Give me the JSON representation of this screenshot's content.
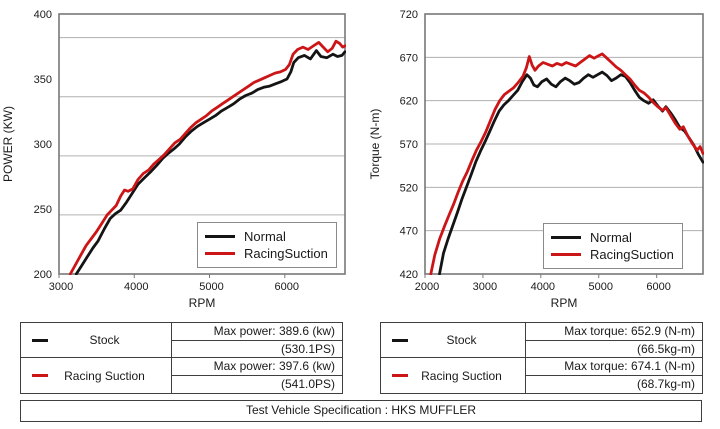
{
  "legend": {
    "items": [
      {
        "label": "Normal",
        "color": "#141414"
      },
      {
        "label": "RacingSuction",
        "color": "#cc1516"
      }
    ]
  },
  "chart_data": [
    {
      "type": "line",
      "title": "",
      "xlabel": "RPM",
      "ylabel": "POWER  (KW)",
      "xlim": [
        3000,
        6800
      ],
      "ylim": [
        200,
        420
      ],
      "x_ticks": [
        3000,
        4000,
        5000,
        6000
      ],
      "y_ticks": [
        400,
        350,
        300,
        250,
        200
      ],
      "y_label_span": [
        200,
        400
      ],
      "gridlines": [
        400,
        350,
        300,
        250
      ],
      "grid_on": true,
      "legend_position": "lower-right",
      "series": [
        {
          "name": "Normal",
          "color": "#141414",
          "points": [
            [
              3230,
              200
            ],
            [
              3300,
              207
            ],
            [
              3380,
              215
            ],
            [
              3450,
              222
            ],
            [
              3520,
              228
            ],
            [
              3600,
              238
            ],
            [
              3680,
              247
            ],
            [
              3750,
              251
            ],
            [
              3820,
              254
            ],
            [
              3900,
              261
            ],
            [
              3970,
              268
            ],
            [
              4050,
              276
            ],
            [
              4130,
              281
            ],
            [
              4210,
              286
            ],
            [
              4300,
              292
            ],
            [
              4380,
              298
            ],
            [
              4450,
              302
            ],
            [
              4530,
              306
            ],
            [
              4600,
              310
            ],
            [
              4680,
              316
            ],
            [
              4760,
              321
            ],
            [
              4840,
              325
            ],
            [
              4920,
              328
            ],
            [
              5000,
              331
            ],
            [
              5080,
              334
            ],
            [
              5160,
              338
            ],
            [
              5240,
              341
            ],
            [
              5320,
              344
            ],
            [
              5400,
              348
            ],
            [
              5480,
              351
            ],
            [
              5560,
              353
            ],
            [
              5640,
              356
            ],
            [
              5720,
              358
            ],
            [
              5800,
              359
            ],
            [
              5880,
              361
            ],
            [
              5960,
              363
            ],
            [
              6030,
              365
            ],
            [
              6080,
              371
            ],
            [
              6120,
              379
            ],
            [
              6180,
              383
            ],
            [
              6260,
              385
            ],
            [
              6340,
              382
            ],
            [
              6420,
              389
            ],
            [
              6480,
              384
            ],
            [
              6560,
              383
            ],
            [
              6640,
              386
            ],
            [
              6700,
              384
            ],
            [
              6760,
              385
            ],
            [
              6800,
              388
            ]
          ]
        },
        {
          "name": "RacingSuction",
          "color": "#cc1516",
          "points": [
            [
              3150,
              200
            ],
            [
              3220,
              208
            ],
            [
              3290,
              216
            ],
            [
              3360,
              224
            ],
            [
              3430,
              230
            ],
            [
              3500,
              236
            ],
            [
              3570,
              243
            ],
            [
              3640,
              250
            ],
            [
              3700,
              254
            ],
            [
              3760,
              258
            ],
            [
              3820,
              266
            ],
            [
              3870,
              271
            ],
            [
              3920,
              270
            ],
            [
              3980,
              272
            ],
            [
              4050,
              280
            ],
            [
              4120,
              285
            ],
            [
              4190,
              288
            ],
            [
              4260,
              293
            ],
            [
              4330,
              297
            ],
            [
              4400,
              301
            ],
            [
              4470,
              306
            ],
            [
              4540,
              311
            ],
            [
              4610,
              314
            ],
            [
              4680,
              319
            ],
            [
              4750,
              324
            ],
            [
              4820,
              328
            ],
            [
              4890,
              331
            ],
            [
              4960,
              334
            ],
            [
              5030,
              338
            ],
            [
              5100,
              341
            ],
            [
              5170,
              344
            ],
            [
              5240,
              347
            ],
            [
              5310,
              350
            ],
            [
              5380,
              353
            ],
            [
              5450,
              356
            ],
            [
              5520,
              359
            ],
            [
              5590,
              362
            ],
            [
              5660,
              364
            ],
            [
              5730,
              366
            ],
            [
              5800,
              368
            ],
            [
              5870,
              370
            ],
            [
              5940,
              371
            ],
            [
              6010,
              373
            ],
            [
              6060,
              377
            ],
            [
              6110,
              386
            ],
            [
              6170,
              390
            ],
            [
              6240,
              392
            ],
            [
              6310,
              390
            ],
            [
              6380,
              393
            ],
            [
              6450,
              396
            ],
            [
              6510,
              392
            ],
            [
              6570,
              388
            ],
            [
              6630,
              391
            ],
            [
              6680,
              397
            ],
            [
              6730,
              395
            ],
            [
              6770,
              392
            ],
            [
              6800,
              393
            ]
          ]
        }
      ]
    },
    {
      "type": "line",
      "title": "",
      "xlabel": "RPM",
      "ylabel": "Torque (N-m)",
      "xlim": [
        2000,
        6800
      ],
      "ylim": [
        420,
        720
      ],
      "x_ticks": [
        2000,
        3000,
        4000,
        5000,
        6000
      ],
      "y_ticks": [
        720,
        670,
        620,
        570,
        520,
        470,
        420
      ],
      "y_label_span": [
        420,
        720
      ],
      "gridlines": [
        670,
        620,
        570,
        520,
        470
      ],
      "grid_on": true,
      "legend_position": "lower-right",
      "series": [
        {
          "name": "Normal",
          "color": "#141414",
          "points": [
            [
              2250,
              420
            ],
            [
              2320,
              444
            ],
            [
              2400,
              461
            ],
            [
              2480,
              476
            ],
            [
              2560,
              491
            ],
            [
              2640,
              507
            ],
            [
              2720,
              521
            ],
            [
              2800,
              535
            ],
            [
              2880,
              550
            ],
            [
              2960,
              562
            ],
            [
              3040,
              573
            ],
            [
              3120,
              585
            ],
            [
              3200,
              597
            ],
            [
              3280,
              608
            ],
            [
              3360,
              615
            ],
            [
              3440,
              620
            ],
            [
              3520,
              626
            ],
            [
              3600,
              632
            ],
            [
              3680,
              642
            ],
            [
              3760,
              650
            ],
            [
              3820,
              646
            ],
            [
              3880,
              638
            ],
            [
              3940,
              636
            ],
            [
              4020,
              642
            ],
            [
              4100,
              645
            ],
            [
              4180,
              639
            ],
            [
              4260,
              636
            ],
            [
              4340,
              642
            ],
            [
              4420,
              646
            ],
            [
              4500,
              643
            ],
            [
              4580,
              639
            ],
            [
              4660,
              641
            ],
            [
              4740,
              646
            ],
            [
              4820,
              650
            ],
            [
              4900,
              647
            ],
            [
              4980,
              650
            ],
            [
              5060,
              653
            ],
            [
              5140,
              649
            ],
            [
              5220,
              643
            ],
            [
              5300,
              646
            ],
            [
              5380,
              650
            ],
            [
              5460,
              648
            ],
            [
              5540,
              641
            ],
            [
              5620,
              632
            ],
            [
              5700,
              624
            ],
            [
              5780,
              620
            ],
            [
              5860,
              617
            ],
            [
              5940,
              621
            ],
            [
              6020,
              614
            ],
            [
              6100,
              608
            ],
            [
              6160,
              613
            ],
            [
              6240,
              606
            ],
            [
              6320,
              598
            ],
            [
              6400,
              589
            ],
            [
              6480,
              585
            ],
            [
              6560,
              577
            ],
            [
              6640,
              569
            ],
            [
              6720,
              558
            ],
            [
              6800,
              549
            ]
          ]
        },
        {
          "name": "RacingSuction",
          "color": "#cc1516",
          "points": [
            [
              2100,
              420
            ],
            [
              2170,
              442
            ],
            [
              2250,
              460
            ],
            [
              2330,
              474
            ],
            [
              2410,
              487
            ],
            [
              2490,
              500
            ],
            [
              2570,
              514
            ],
            [
              2650,
              527
            ],
            [
              2730,
              538
            ],
            [
              2810,
              551
            ],
            [
              2890,
              563
            ],
            [
              2970,
              573
            ],
            [
              3050,
              584
            ],
            [
              3130,
              597
            ],
            [
              3210,
              610
            ],
            [
              3290,
              620
            ],
            [
              3370,
              627
            ],
            [
              3450,
              631
            ],
            [
              3530,
              635
            ],
            [
              3610,
              641
            ],
            [
              3690,
              648
            ],
            [
              3750,
              658
            ],
            [
              3800,
              671
            ],
            [
              3850,
              661
            ],
            [
              3900,
              655
            ],
            [
              3960,
              660
            ],
            [
              4040,
              664
            ],
            [
              4120,
              662
            ],
            [
              4200,
              660
            ],
            [
              4280,
              663
            ],
            [
              4360,
              661
            ],
            [
              4440,
              664
            ],
            [
              4520,
              662
            ],
            [
              4600,
              660
            ],
            [
              4680,
              664
            ],
            [
              4760,
              668
            ],
            [
              4840,
              672
            ],
            [
              4920,
              669
            ],
            [
              5000,
              672
            ],
            [
              5060,
              674
            ],
            [
              5140,
              669
            ],
            [
              5220,
              664
            ],
            [
              5300,
              659
            ],
            [
              5380,
              655
            ],
            [
              5460,
              650
            ],
            [
              5540,
              645
            ],
            [
              5620,
              638
            ],
            [
              5700,
              632
            ],
            [
              5780,
              629
            ],
            [
              5860,
              624
            ],
            [
              5940,
              618
            ],
            [
              6020,
              613
            ],
            [
              6100,
              609
            ],
            [
              6160,
              612
            ],
            [
              6240,
              603
            ],
            [
              6320,
              594
            ],
            [
              6400,
              587
            ],
            [
              6460,
              590
            ],
            [
              6540,
              579
            ],
            [
              6620,
              570
            ],
            [
              6700,
              563
            ],
            [
              6750,
              567
            ],
            [
              6800,
              559
            ]
          ]
        }
      ]
    }
  ],
  "tables": {
    "power": {
      "rows": [
        {
          "name": "Stock",
          "color": "#141414",
          "line1": "Max power: 389.6 (kw)",
          "line2": "(530.1PS)"
        },
        {
          "name": "Racing Suction",
          "color": "#cc1516",
          "line1": "Max power: 397.6 (kw)",
          "line2": "(541.0PS)"
        }
      ]
    },
    "torque": {
      "rows": [
        {
          "name": "Stock",
          "color": "#141414",
          "line1": "Max torque: 652.9 (N-m)",
          "line2": "(66.5kg-m)"
        },
        {
          "name": "Racing Suction",
          "color": "#cc1516",
          "line1": "Max torque: 674.1 (N-m)",
          "line2": "(68.7kg-m)"
        }
      ]
    }
  },
  "footer": {
    "text": "Test Vehicle Specification : HKS MUFFLER"
  }
}
